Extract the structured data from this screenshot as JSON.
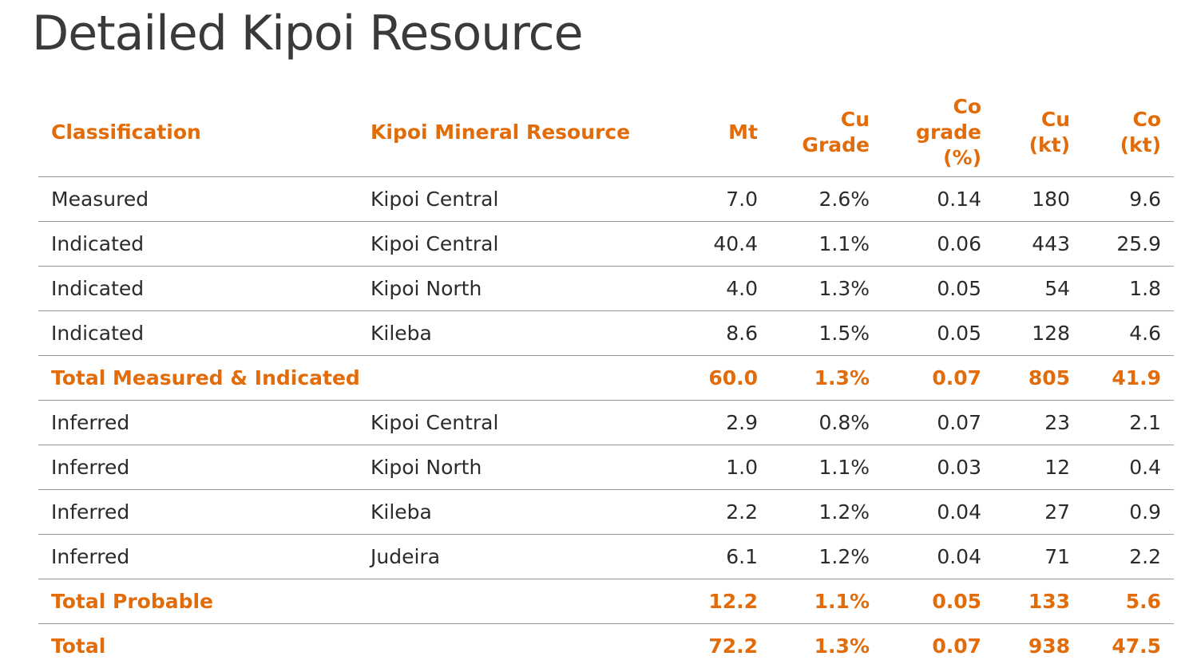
{
  "title": "Detailed Kipoi Resource",
  "accent_color": "#e36c0a",
  "table": {
    "headers": {
      "classification": "Classification",
      "resource": "Kipoi Mineral Resource",
      "mt": "Mt",
      "cu_grade": [
        "Cu",
        "Grade"
      ],
      "co_grade": [
        "Co",
        "grade",
        "(%)"
      ],
      "cu_kt": [
        "Cu",
        "(kt)"
      ],
      "co_kt": [
        "Co",
        "(kt)"
      ]
    },
    "rows": [
      {
        "classification": "Measured",
        "resource": "Kipoi Central",
        "mt": "7.0",
        "cu_grade": "2.6%",
        "co_grade": "0.14",
        "cu_kt": "180",
        "co_kt": "9.6",
        "total": false
      },
      {
        "classification": "Indicated",
        "resource": "Kipoi Central",
        "mt": "40.4",
        "cu_grade": "1.1%",
        "co_grade": "0.06",
        "cu_kt": "443",
        "co_kt": "25.9",
        "total": false
      },
      {
        "classification": "Indicated",
        "resource": "Kipoi North",
        "mt": "4.0",
        "cu_grade": "1.3%",
        "co_grade": "0.05",
        "cu_kt": "54",
        "co_kt": "1.8",
        "total": false
      },
      {
        "classification": "Indicated",
        "resource": "Kileba",
        "mt": "8.6",
        "cu_grade": "1.5%",
        "co_grade": "0.05",
        "cu_kt": "128",
        "co_kt": "4.6",
        "total": false
      },
      {
        "classification": "Total Measured & Indicated",
        "resource": "",
        "mt": "60.0",
        "cu_grade": "1.3%",
        "co_grade": "0.07",
        "cu_kt": "805",
        "co_kt": "41.9",
        "total": true
      },
      {
        "classification": "Inferred",
        "resource": "Kipoi Central",
        "mt": "2.9",
        "cu_grade": "0.8%",
        "co_grade": "0.07",
        "cu_kt": "23",
        "co_kt": "2.1",
        "total": false
      },
      {
        "classification": "Inferred",
        "resource": "Kipoi North",
        "mt": "1.0",
        "cu_grade": "1.1%",
        "co_grade": "0.03",
        "cu_kt": "12",
        "co_kt": "0.4",
        "total": false
      },
      {
        "classification": "Inferred",
        "resource": "Kileba",
        "mt": "2.2",
        "cu_grade": "1.2%",
        "co_grade": "0.04",
        "cu_kt": "27",
        "co_kt": "0.9",
        "total": false
      },
      {
        "classification": "Inferred",
        "resource": "Judeira",
        "mt": "6.1",
        "cu_grade": "1.2%",
        "co_grade": "0.04",
        "cu_kt": "71",
        "co_kt": "2.2",
        "total": false
      },
      {
        "classification": "Total Probable",
        "resource": "",
        "mt": "12.2",
        "cu_grade": "1.1%",
        "co_grade": "0.05",
        "cu_kt": "133",
        "co_kt": "5.6",
        "total": true
      },
      {
        "classification": "Total",
        "resource": "",
        "mt": "72.2",
        "cu_grade": "1.3%",
        "co_grade": "0.07",
        "cu_kt": "938",
        "co_kt": "47.5",
        "total": true
      }
    ]
  }
}
